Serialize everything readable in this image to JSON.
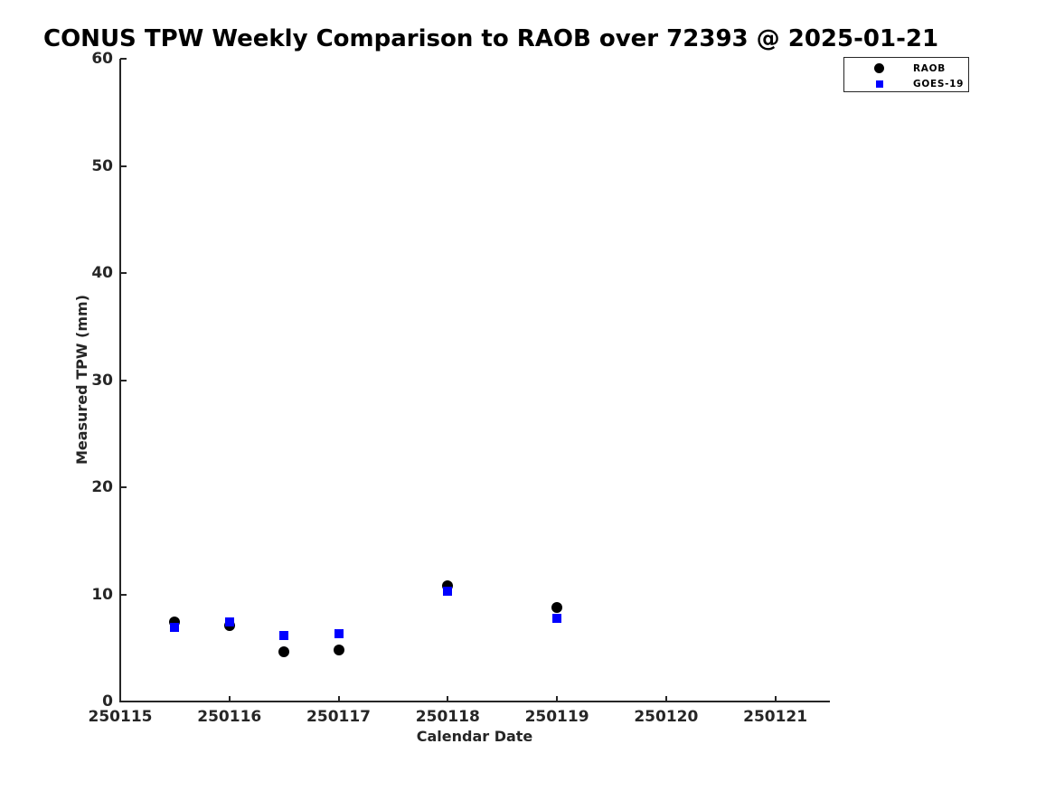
{
  "chart_data": {
    "type": "scatter",
    "title": "CONUS TPW Weekly Comparison to RAOB over 72393 @ 2025-01-21",
    "xlabel": "Calendar Date",
    "ylabel": "Measured TPW (mm)",
    "xlim": [
      250115,
      250121.5
    ],
    "ylim": [
      0,
      60
    ],
    "x_ticks": [
      "250115",
      "250116",
      "250117",
      "250118",
      "250119",
      "250120",
      "250121"
    ],
    "x_tick_values": [
      250115,
      250116,
      250117,
      250118,
      250119,
      250120,
      250121
    ],
    "y_ticks": [
      "0",
      "10",
      "20",
      "30",
      "40",
      "50",
      "60"
    ],
    "y_tick_values": [
      0,
      10,
      20,
      30,
      40,
      50,
      60
    ],
    "grid": false,
    "legend_position": "top-right",
    "series": [
      {
        "name": "RAOB",
        "marker": "circle",
        "color": "#000000",
        "x": [
          250115.5,
          250116.0,
          250116.5,
          250117.0,
          250118.0,
          250119.0
        ],
        "y": [
          7.4,
          7.1,
          4.6,
          4.8,
          10.8,
          8.8
        ]
      },
      {
        "name": "GOES-19",
        "marker": "square",
        "color": "#0000ff",
        "x": [
          250115.5,
          250116.0,
          250116.5,
          250117.0,
          250118.0,
          250119.0
        ],
        "y": [
          6.9,
          7.4,
          6.2,
          6.3,
          10.3,
          7.8
        ]
      }
    ]
  },
  "colors": {
    "background": "#ffffff",
    "axis": "#262626",
    "title_text": "#000000",
    "raob": "#000000",
    "goes19": "#0000ff"
  }
}
